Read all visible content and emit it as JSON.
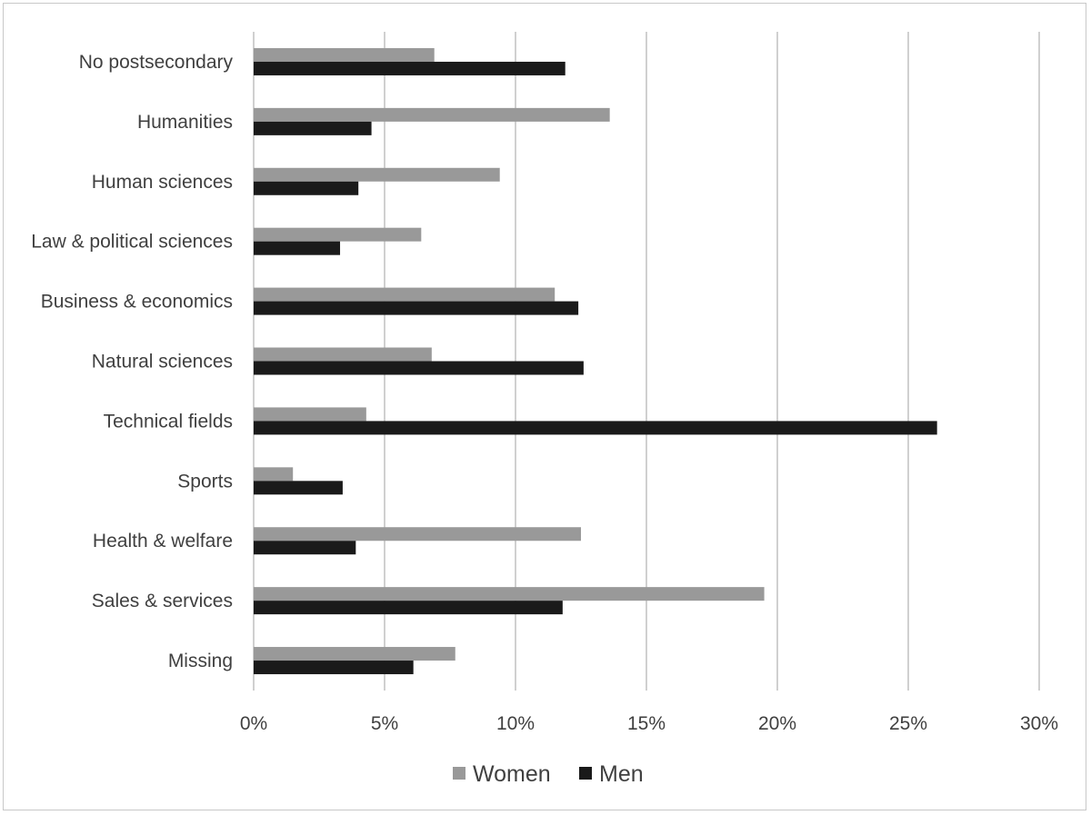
{
  "chart_data": {
    "type": "bar",
    "orientation": "horizontal",
    "title": "",
    "xlabel": "",
    "ylabel": "",
    "categories": [
      "No postsecondary",
      "Humanities",
      "Human sciences",
      "Law & political sciences",
      "Business & economics",
      "Natural sciences",
      "Technical fields",
      "Sports",
      "Health & welfare",
      "Sales & services",
      "Missing"
    ],
    "series": [
      {
        "name": "Women",
        "color": "#999999",
        "values": [
          6.9,
          13.6,
          9.4,
          6.4,
          11.5,
          6.8,
          4.3,
          1.5,
          12.5,
          19.5,
          7.7
        ]
      },
      {
        "name": "Men",
        "color": "#1a1a1a",
        "values": [
          11.9,
          4.5,
          4.0,
          3.3,
          12.4,
          12.6,
          26.1,
          3.4,
          3.9,
          11.8,
          6.1
        ]
      }
    ],
    "xlim": [
      0,
      30
    ],
    "x_ticks": [
      0,
      5,
      10,
      15,
      20,
      25,
      30
    ],
    "x_tick_labels": [
      "0%",
      "5%",
      "10%",
      "15%",
      "20%",
      "25%",
      "30%"
    ],
    "grid": "vertical",
    "grid_color": "#d0d0d0",
    "legend": "bottom"
  }
}
